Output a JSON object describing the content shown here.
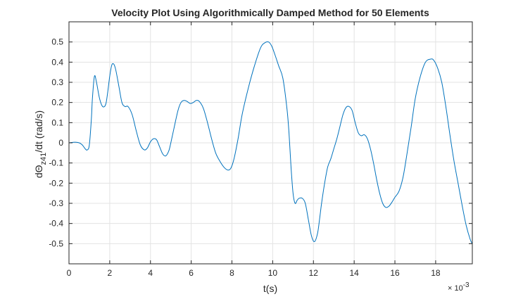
{
  "chart_data": {
    "type": "line",
    "title": "Velocity Plot Using Algorithmically Damped Method for 50 Elements",
    "xlabel": "t(s)",
    "ylabel": {
      "prefix": "d",
      "symbol": "Θ",
      "subscript": "z41",
      "suffix": "/dt  (rad/s)"
    },
    "x_exponent": {
      "base": "× 10",
      "power": "-3"
    },
    "xlim": [
      0,
      19.8
    ],
    "ylim": [
      -0.6,
      0.6
    ],
    "xticks": [
      0,
      2,
      4,
      6,
      8,
      10,
      12,
      14,
      16,
      18
    ],
    "yticks": [
      -0.5,
      -0.4,
      -0.3,
      -0.2,
      -0.1,
      0,
      0.1,
      0.2,
      0.3,
      0.4,
      0.5
    ],
    "grid": true,
    "line_color": "#0072BD",
    "series": [
      {
        "x": [
          0,
          0.3,
          0.5,
          0.65,
          0.8,
          0.9,
          1.0,
          1.1,
          1.15,
          1.25,
          1.35,
          1.5,
          1.65,
          1.8,
          1.9,
          2.0,
          2.1,
          2.2,
          2.3,
          2.45,
          2.6,
          2.75,
          2.9,
          3.1,
          3.3,
          3.5,
          3.7,
          3.85,
          4.0,
          4.15,
          4.3,
          4.45,
          4.6,
          4.75,
          4.9,
          5.0,
          5.15,
          5.35,
          5.5,
          5.65,
          5.8,
          5.95,
          6.1,
          6.25,
          6.4,
          6.6,
          6.8,
          7.0,
          7.2,
          7.4,
          7.6,
          7.8,
          7.95,
          8.1,
          8.3,
          8.5,
          8.8,
          9.1,
          9.4,
          9.6,
          9.8,
          9.95,
          10.1,
          10.3,
          10.5,
          10.7,
          10.8,
          10.9,
          11.0,
          11.1,
          11.2,
          11.3,
          11.45,
          11.6,
          11.75,
          11.9,
          12.05,
          12.2,
          12.3,
          12.4,
          12.55,
          12.7,
          12.85,
          13.0,
          13.15,
          13.3,
          13.45,
          13.6,
          13.75,
          13.9,
          14.05,
          14.2,
          14.35,
          14.5,
          14.65,
          14.8,
          14.95,
          15.1,
          15.25,
          15.4,
          15.55,
          15.7,
          15.85,
          16.0,
          16.2,
          16.4,
          16.6,
          16.8,
          17.0,
          17.25,
          17.5,
          17.75,
          17.9,
          18.1,
          18.3,
          18.5,
          18.7,
          18.9,
          19.1,
          19.3,
          19.5,
          19.7,
          19.8
        ],
        "y": [
          0,
          0.003,
          0,
          -0.01,
          -0.03,
          -0.035,
          -0.01,
          0.12,
          0.22,
          0.33,
          0.3,
          0.22,
          0.18,
          0.19,
          0.25,
          0.33,
          0.385,
          0.39,
          0.36,
          0.28,
          0.2,
          0.18,
          0.18,
          0.14,
          0.06,
          -0.01,
          -0.035,
          -0.025,
          0.005,
          0.02,
          0.015,
          -0.02,
          -0.055,
          -0.065,
          -0.04,
          0,
          0.07,
          0.16,
          0.2,
          0.21,
          0.205,
          0.195,
          0.2,
          0.21,
          0.205,
          0.17,
          0.1,
          0.02,
          -0.05,
          -0.09,
          -0.12,
          -0.135,
          -0.125,
          -0.08,
          0.02,
          0.14,
          0.27,
          0.38,
          0.47,
          0.495,
          0.5,
          0.48,
          0.44,
          0.38,
          0.32,
          0.17,
          0.05,
          -0.12,
          -0.25,
          -0.3,
          -0.285,
          -0.275,
          -0.275,
          -0.3,
          -0.38,
          -0.46,
          -0.49,
          -0.45,
          -0.38,
          -0.3,
          -0.2,
          -0.12,
          -0.08,
          -0.03,
          0.02,
          0.08,
          0.14,
          0.175,
          0.18,
          0.16,
          0.1,
          0.05,
          0.035,
          0.04,
          0.02,
          -0.03,
          -0.1,
          -0.18,
          -0.25,
          -0.3,
          -0.32,
          -0.315,
          -0.295,
          -0.27,
          -0.24,
          -0.17,
          -0.05,
          0.08,
          0.22,
          0.33,
          0.4,
          0.415,
          0.41,
          0.37,
          0.3,
          0.18,
          0.04,
          -0.09,
          -0.2,
          -0.31,
          -0.41,
          -0.48,
          -0.5
        ]
      }
    ]
  }
}
